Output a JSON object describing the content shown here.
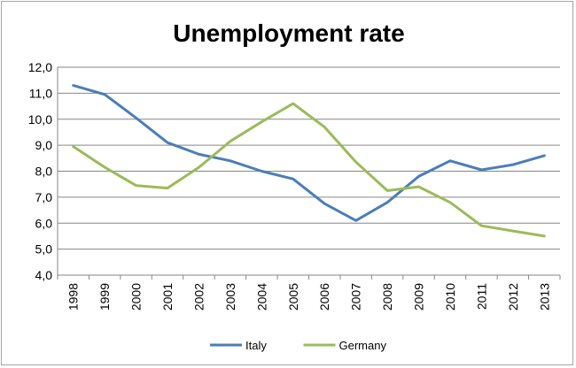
{
  "chart_data": {
    "type": "line",
    "title": "Unemployment rate",
    "xlabel": "",
    "ylabel": "",
    "x": [
      "1998",
      "1999",
      "2000",
      "2001",
      "2002",
      "2003",
      "2004",
      "2005",
      "2006",
      "2007",
      "2008",
      "2009",
      "2010",
      "2011",
      "2012",
      "2013"
    ],
    "ylim": [
      4.0,
      12.0
    ],
    "yticks": [
      4,
      5,
      6,
      7,
      8,
      9,
      10,
      11,
      12
    ],
    "ytick_labels": [
      "4,0",
      "5,0",
      "6,0",
      "7,0",
      "8,0",
      "9,0",
      "10,0",
      "11,0",
      "12,0"
    ],
    "grid": "horizontal",
    "legend_position": "bottom",
    "series": [
      {
        "name": "Italy",
        "color": "#4a7ebb",
        "values": [
          11.3,
          10.95,
          10.05,
          9.1,
          8.65,
          8.4,
          8.0,
          7.7,
          6.75,
          6.1,
          6.8,
          7.8,
          8.4,
          8.05,
          8.25,
          8.6
        ]
      },
      {
        "name": "Germany",
        "color": "#9bbb59",
        "values": [
          8.95,
          8.15,
          7.45,
          7.35,
          8.15,
          9.15,
          9.9,
          10.6,
          9.7,
          8.35,
          7.25,
          7.4,
          6.8,
          5.9,
          5.7,
          5.5
        ]
      }
    ]
  }
}
